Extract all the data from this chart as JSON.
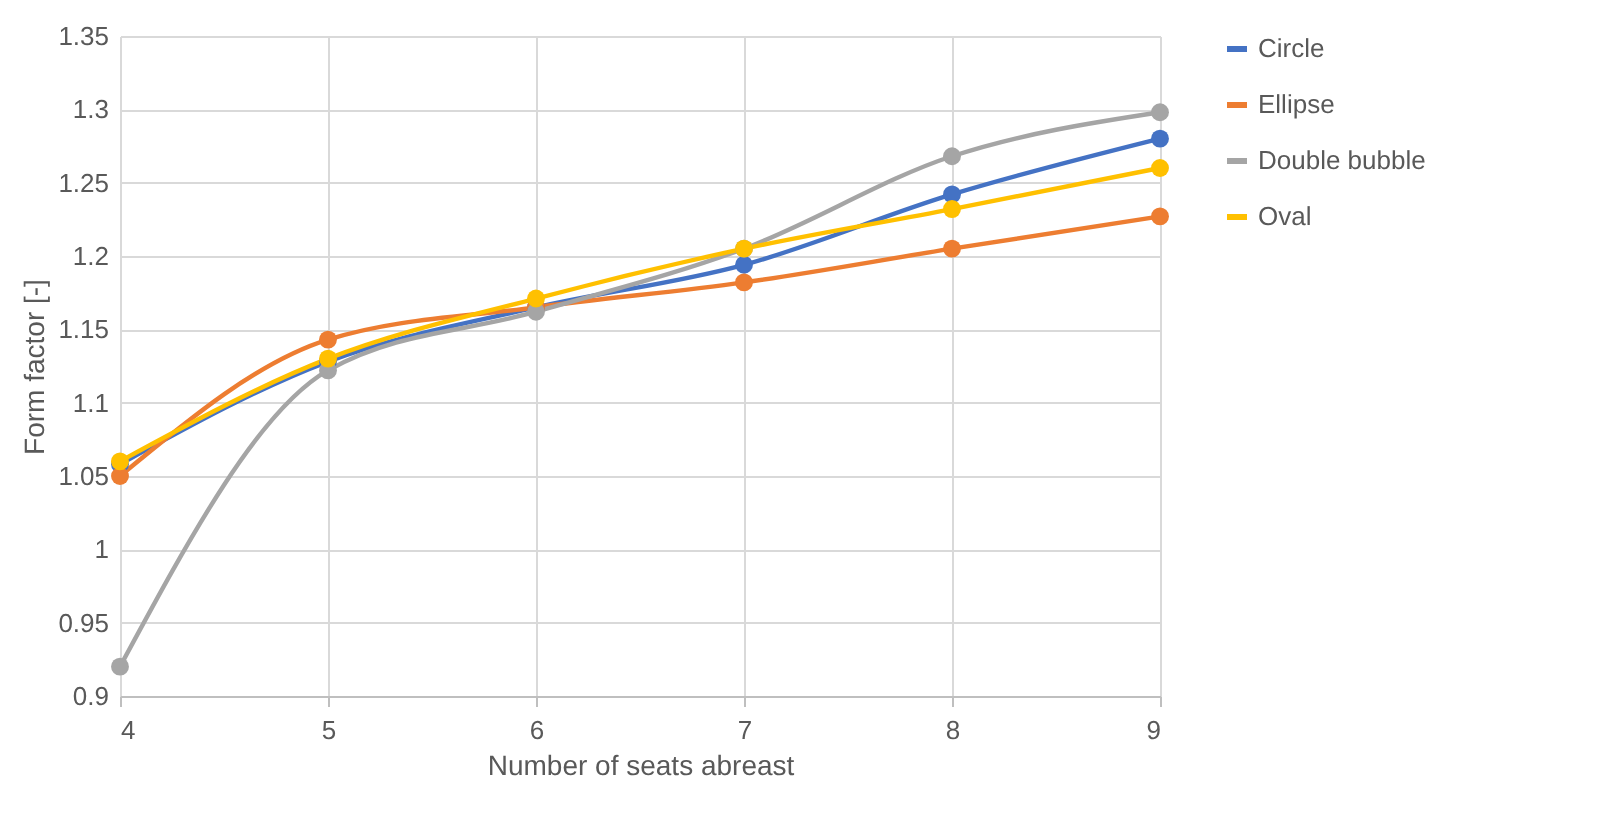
{
  "chart_data": {
    "type": "line",
    "xlabel": "Number of seats abreast",
    "ylabel": "Form factor [-]",
    "x": [
      4,
      5,
      6,
      7,
      8,
      9
    ],
    "xlim": [
      4,
      9
    ],
    "xticks": [
      4,
      5,
      6,
      7,
      8,
      9
    ],
    "ylim": [
      0.9,
      1.35
    ],
    "yticks": [
      0.9,
      0.95,
      1,
      1.05,
      1.1,
      1.15,
      1.2,
      1.25,
      1.3,
      1.35
    ],
    "series": [
      {
        "name": "Circle",
        "color": "#4472c4",
        "values": [
          1.058,
          1.128,
          1.165,
          1.194,
          1.242,
          1.28
        ]
      },
      {
        "name": "Ellipse",
        "color": "#ed7d31",
        "values": [
          1.05,
          1.143,
          1.165,
          1.182,
          1.205,
          1.227
        ]
      },
      {
        "name": "Double bubble",
        "color": "#a5a5a5",
        "values": [
          0.92,
          1.122,
          1.162,
          1.205,
          1.268,
          1.298
        ]
      },
      {
        "name": "Oval",
        "color": "#ffc000",
        "values": [
          1.06,
          1.13,
          1.171,
          1.205,
          1.232,
          1.26
        ]
      }
    ],
    "grid": true,
    "legend": "right",
    "marker": "circle",
    "line_style": "solid"
  }
}
